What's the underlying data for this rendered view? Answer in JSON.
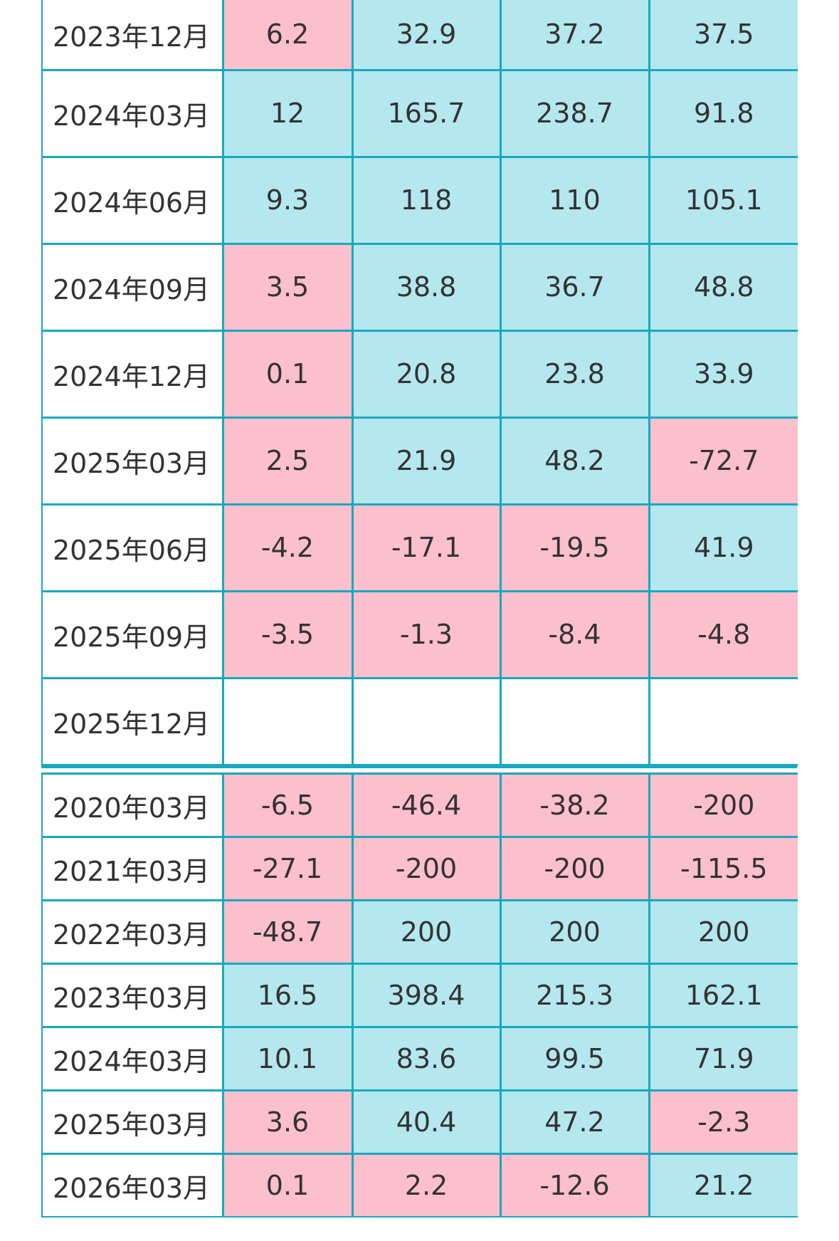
{
  "colors": {
    "border": "#17a9c0",
    "positive_bg": "#b5e7ef",
    "negative_bg": "#fcbfcc",
    "period_bg": "#ffffff",
    "text": "#333333"
  },
  "quarterly": {
    "rows": [
      {
        "period": "2023年12月",
        "values": [
          "6.2",
          "32.9",
          "37.2",
          "37.5"
        ],
        "tones": [
          "neg",
          "pos",
          "pos",
          "pos"
        ]
      },
      {
        "period": "2024年03月",
        "values": [
          "12",
          "165.7",
          "238.7",
          "91.8"
        ],
        "tones": [
          "pos",
          "pos",
          "pos",
          "pos"
        ]
      },
      {
        "period": "2024年06月",
        "values": [
          "9.3",
          "118",
          "110",
          "105.1"
        ],
        "tones": [
          "pos",
          "pos",
          "pos",
          "pos"
        ]
      },
      {
        "period": "2024年09月",
        "values": [
          "3.5",
          "38.8",
          "36.7",
          "48.8"
        ],
        "tones": [
          "neg",
          "pos",
          "pos",
          "pos"
        ]
      },
      {
        "period": "2024年12月",
        "values": [
          "0.1",
          "20.8",
          "23.8",
          "33.9"
        ],
        "tones": [
          "neg",
          "pos",
          "pos",
          "pos"
        ]
      },
      {
        "period": "2025年03月",
        "values": [
          "2.5",
          "21.9",
          "48.2",
          "-72.7"
        ],
        "tones": [
          "neg",
          "pos",
          "pos",
          "neg"
        ]
      },
      {
        "period": "2025年06月",
        "values": [
          "-4.2",
          "-17.1",
          "-19.5",
          "41.9"
        ],
        "tones": [
          "neg",
          "neg",
          "neg",
          "pos"
        ]
      },
      {
        "period": "2025年09月",
        "values": [
          "-3.5",
          "-1.3",
          "-8.4",
          "-4.8"
        ],
        "tones": [
          "neg",
          "neg",
          "neg",
          "neg"
        ]
      },
      {
        "period": "2025年12月",
        "values": [
          "",
          "",
          "",
          ""
        ],
        "tones": [
          "blank",
          "blank",
          "blank",
          "blank"
        ]
      }
    ]
  },
  "annual": {
    "rows": [
      {
        "period": "2020年03月",
        "values": [
          "-6.5",
          "-46.4",
          "-38.2",
          "-200"
        ],
        "tones": [
          "neg",
          "neg",
          "neg",
          "neg"
        ]
      },
      {
        "period": "2021年03月",
        "values": [
          "-27.1",
          "-200",
          "-200",
          "-115.5"
        ],
        "tones": [
          "neg",
          "neg",
          "neg",
          "neg"
        ]
      },
      {
        "period": "2022年03月",
        "values": [
          "-48.7",
          "200",
          "200",
          "200"
        ],
        "tones": [
          "neg",
          "pos",
          "pos",
          "pos"
        ]
      },
      {
        "period": "2023年03月",
        "values": [
          "16.5",
          "398.4",
          "215.3",
          "162.1"
        ],
        "tones": [
          "pos",
          "pos",
          "pos",
          "pos"
        ]
      },
      {
        "period": "2024年03月",
        "values": [
          "10.1",
          "83.6",
          "99.5",
          "71.9"
        ],
        "tones": [
          "pos",
          "pos",
          "pos",
          "pos"
        ]
      },
      {
        "period": "2025年03月",
        "values": [
          "3.6",
          "40.4",
          "47.2",
          "-2.3"
        ],
        "tones": [
          "neg",
          "pos",
          "pos",
          "neg"
        ]
      },
      {
        "period": "2026年03月",
        "values": [
          "0.1",
          "2.2",
          "-12.6",
          "21.2"
        ],
        "tones": [
          "neg",
          "neg",
          "neg",
          "pos"
        ]
      }
    ]
  }
}
